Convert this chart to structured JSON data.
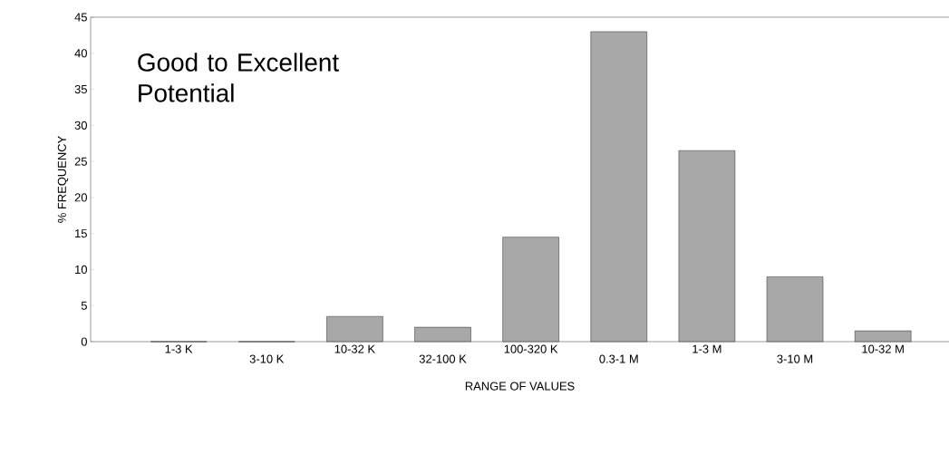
{
  "chart_data": {
    "type": "bar",
    "xlabel": "RANGE OF VALUES",
    "ylabel": "% FREQUENCY",
    "annotations": [
      "Good to Excellent Potential"
    ],
    "categories": [
      "1-3 K",
      "3-10 K",
      "10-32 K",
      "32-100 K",
      "100-320 K",
      "0.3-1 M",
      "1-3 M",
      "3-10 M",
      "10-32 M"
    ],
    "values": [
      0,
      0,
      3.5,
      2,
      14.5,
      43,
      26.5,
      9,
      1.5
    ],
    "color": "#a8a8a8",
    "ylim": [
      0,
      45
    ],
    "yticks": [
      0,
      5,
      10,
      15,
      20,
      25,
      30,
      35,
      40,
      45
    ],
    "grid": false
  }
}
